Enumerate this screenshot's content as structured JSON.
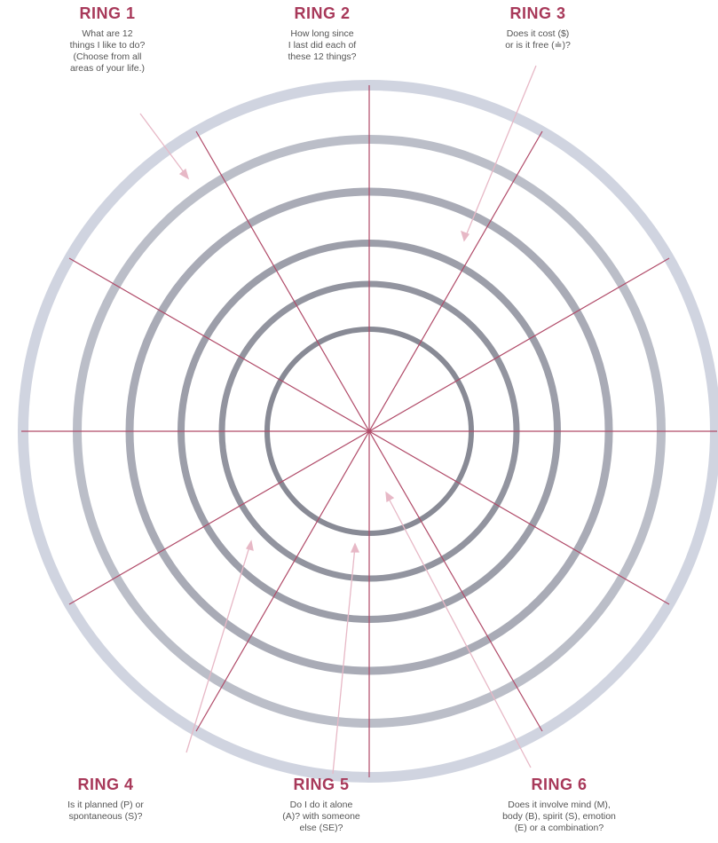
{
  "rings": [
    {
      "title": "RING 1",
      "description": "What are 12\nthings I like to do?\n(Choose from all\nareas of your life.)"
    },
    {
      "title": "RING 2",
      "description": "How long since\nI last did each of\nthese 12 things?"
    },
    {
      "title": "RING 3",
      "description": "Does it cost ($)\nor is it free (≐)?"
    },
    {
      "title": "RING 4",
      "description": "Is it planned (P) or\nspontaneous (S)?"
    },
    {
      "title": "RING 5",
      "description": "Do I do it alone\n(A)? with someone\nelse (SE)?"
    },
    {
      "title": "RING 6",
      "description": "Does it involve mind (M),\nbody (B), spirit (S), emotion\n(E) or a combination?"
    }
  ],
  "colors": {
    "accent": "#a8395a",
    "spoke": "#b04a68",
    "ring_inner": "#8c8e9a",
    "ring_outer": "#c8ccda",
    "arrow": "#e7b8c6"
  }
}
